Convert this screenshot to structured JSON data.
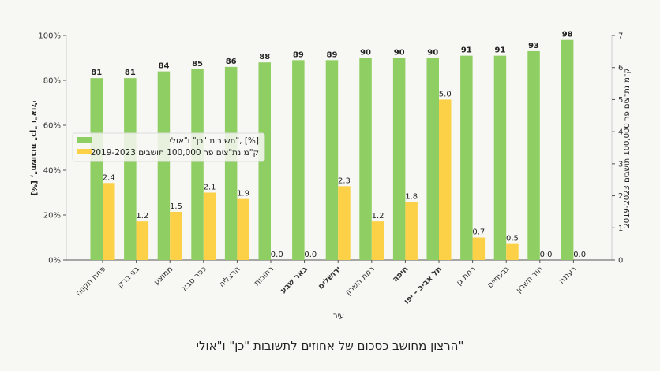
{
  "chart_data": {
    "type": "bar",
    "title": "הרצון מחושב כסכום של אחוזים לתשובות \"כן\" ו\"אולי\"",
    "xlabel": "עיר",
    "ylabel": "תשובות \"כן\" ו\"אולי\", [%]",
    "y2label": "ק\"מ נת\"צים פר 100,000 תושבים 2019-2023",
    "ylim": [
      0,
      100
    ],
    "y2lim": [
      0,
      7
    ],
    "yticks": [
      "0%",
      "20%",
      "40%",
      "60%",
      "80%",
      "100%"
    ],
    "y2ticks": [
      "0",
      "1",
      "2",
      "3",
      "4",
      "5",
      "6",
      "7"
    ],
    "legend_placement": "center-left",
    "grid": false,
    "categories": [
      "פתח תקווה",
      "בני ברק",
      "ממוצע",
      "כפר סבא",
      "הרצליה",
      "רחובות",
      "באר שבע",
      "ירושלים",
      "רמת השרון",
      "חיפה",
      "תל אביב - יפו",
      "רמת גן",
      "גבעתיים",
      "הוד השרון",
      "רעננה"
    ],
    "bold_categories": [
      "באר שבע",
      "ירושלים",
      "חיפה",
      "תל אביב - יפו"
    ],
    "series": [
      {
        "name": "תשובות \"כן\" ו\"אולי\", [%]",
        "axis": "left",
        "color": "#8fce62",
        "values": [
          81,
          81,
          84,
          85,
          86,
          88,
          89,
          89,
          90,
          90,
          90,
          91,
          91,
          93,
          98
        ],
        "labels": [
          "81",
          "81",
          "84",
          "85",
          "86",
          "88",
          "89",
          "89",
          "90",
          "90",
          "90",
          "91",
          "91",
          "93",
          "98"
        ]
      },
      {
        "name": "ק\"מ נת\"צים פר 100,000 תושבים 2019-2023",
        "axis": "right",
        "color": "#fdd147",
        "values": [
          2.4,
          1.2,
          1.5,
          2.1,
          1.9,
          0.0,
          0.0,
          2.3,
          1.2,
          1.8,
          5.0,
          0.7,
          0.5,
          0.0,
          0.0
        ],
        "labels": [
          "2.4",
          "1.2",
          "1.5",
          "2.1",
          "1.9",
          "0.0",
          "0.0",
          "2.3",
          "1.2",
          "1.8",
          "5.0",
          "0.7",
          "0.5",
          "0.0",
          "0.0"
        ]
      }
    ]
  }
}
